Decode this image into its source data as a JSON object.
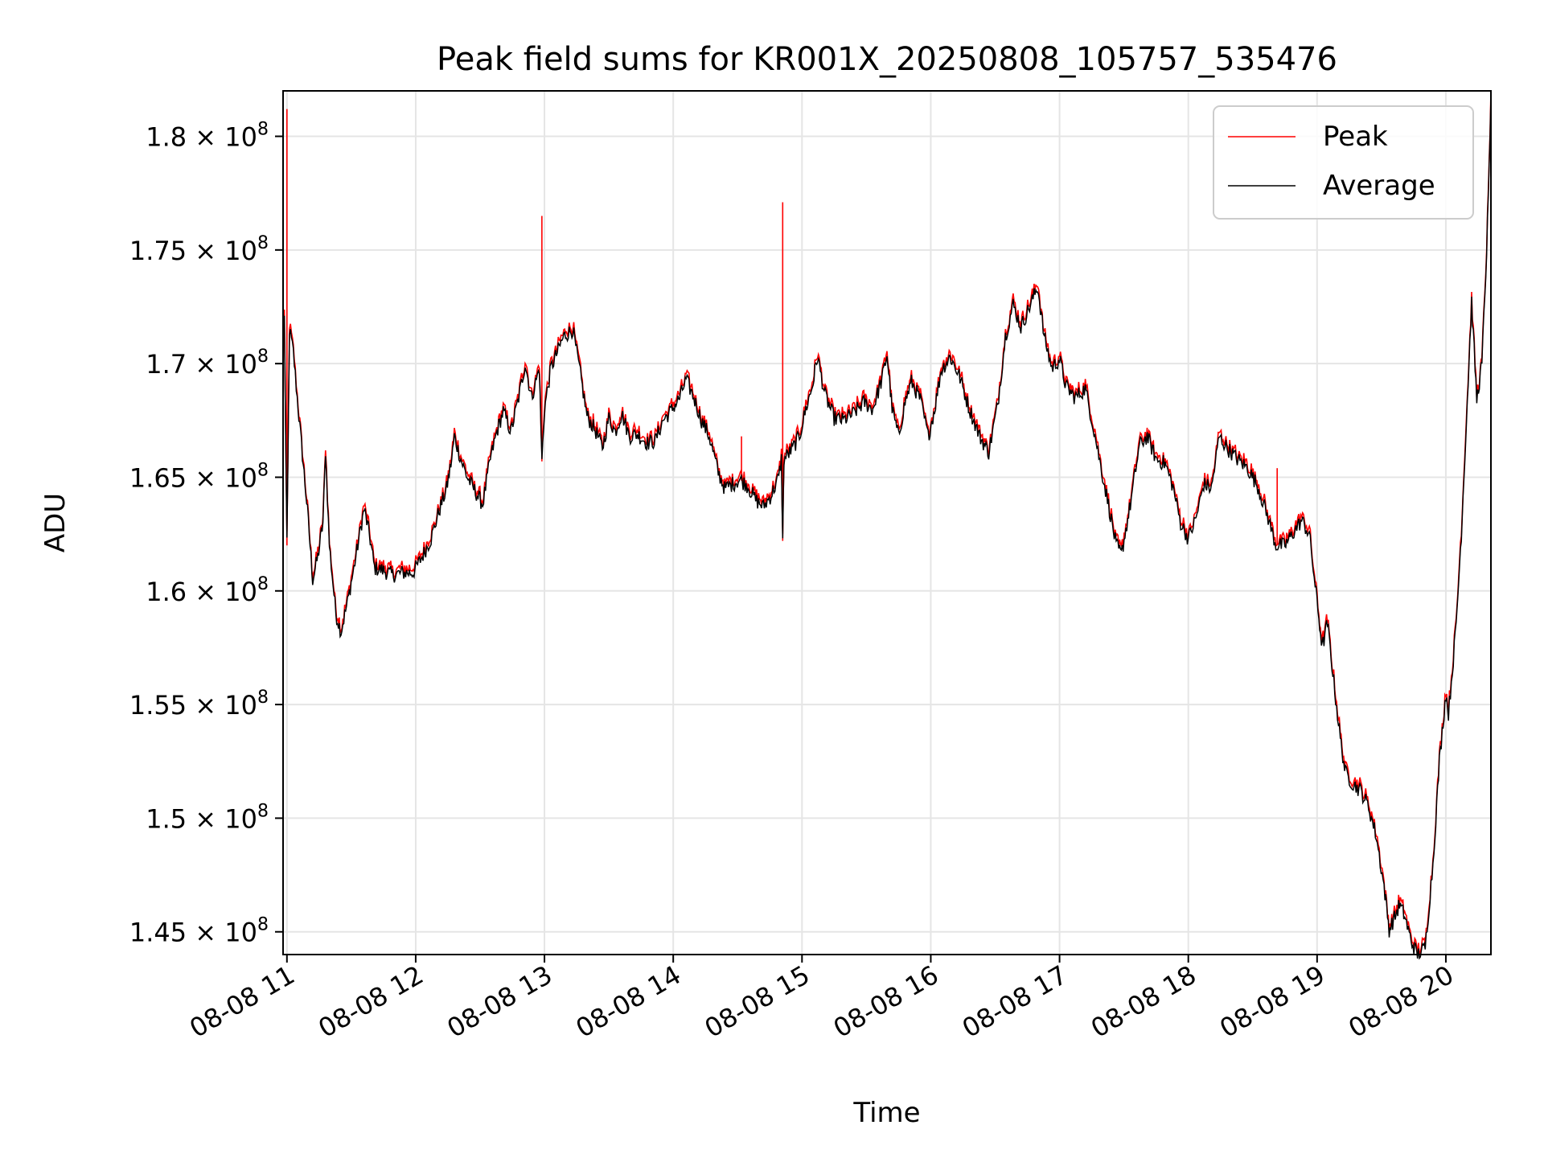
{
  "chart_data": {
    "type": "line",
    "title": "Peak field sums for KR001X_20250808_105757_535476",
    "xlabel": "Time",
    "ylabel": "ADU",
    "x_unit": "hours of day on 08-08",
    "xlim": [
      10.97,
      20.35
    ],
    "ylim": [
      144000000,
      182000000
    ],
    "grid": true,
    "legend_position": "top-right",
    "x_ticks": [
      {
        "value": 11,
        "label": "08-08 11"
      },
      {
        "value": 12,
        "label": "08-08 12"
      },
      {
        "value": 13,
        "label": "08-08 13"
      },
      {
        "value": 14,
        "label": "08-08 14"
      },
      {
        "value": 15,
        "label": "08-08 15"
      },
      {
        "value": 16,
        "label": "08-08 16"
      },
      {
        "value": 17,
        "label": "08-08 17"
      },
      {
        "value": 18,
        "label": "08-08 18"
      },
      {
        "value": 19,
        "label": "08-08 19"
      },
      {
        "value": 20,
        "label": "08-08 20"
      }
    ],
    "y_ticks": [
      {
        "value": 145000000,
        "mantissa": "1.45",
        "base": "10",
        "exp": "8"
      },
      {
        "value": 150000000,
        "mantissa": "1.5",
        "base": "10",
        "exp": "8"
      },
      {
        "value": 155000000,
        "mantissa": "1.55",
        "base": "10",
        "exp": "8"
      },
      {
        "value": 160000000,
        "mantissa": "1.6",
        "base": "10",
        "exp": "8"
      },
      {
        "value": 165000000,
        "mantissa": "1.65",
        "base": "10",
        "exp": "8"
      },
      {
        "value": 170000000,
        "mantissa": "1.7",
        "base": "10",
        "exp": "8"
      },
      {
        "value": 175000000,
        "mantissa": "1.75",
        "base": "10",
        "exp": "8"
      },
      {
        "value": 180000000,
        "mantissa": "1.8",
        "base": "10",
        "exp": "8"
      }
    ],
    "average_points": [
      [
        10.98,
        172000000
      ],
      [
        11.0,
        162000000
      ],
      [
        11.02,
        171500000
      ],
      [
        11.05,
        170500000
      ],
      [
        11.08,
        168500000
      ],
      [
        11.12,
        166000000
      ],
      [
        11.16,
        163500000
      ],
      [
        11.2,
        160500000
      ],
      [
        11.24,
        161500000
      ],
      [
        11.28,
        163000000
      ],
      [
        11.3,
        166200000
      ],
      [
        11.33,
        162000000
      ],
      [
        11.38,
        159000000
      ],
      [
        11.42,
        158200000
      ],
      [
        11.47,
        159500000
      ],
      [
        11.52,
        161000000
      ],
      [
        11.55,
        162000000
      ],
      [
        11.58,
        163000000
      ],
      [
        11.6,
        163600000
      ],
      [
        11.64,
        162500000
      ],
      [
        11.68,
        161000000
      ],
      [
        11.75,
        160900000
      ],
      [
        11.82,
        160700000
      ],
      [
        11.9,
        160800000
      ],
      [
        11.98,
        160800000
      ],
      [
        12.05,
        161500000
      ],
      [
        12.12,
        162300000
      ],
      [
        12.18,
        163500000
      ],
      [
        12.24,
        164500000
      ],
      [
        12.28,
        165800000
      ],
      [
        12.3,
        166800000
      ],
      [
        12.35,
        165800000
      ],
      [
        12.4,
        165000000
      ],
      [
        12.45,
        164500000
      ],
      [
        12.52,
        163800000
      ],
      [
        12.58,
        165800000
      ],
      [
        12.63,
        167000000
      ],
      [
        12.68,
        167900000
      ],
      [
        12.74,
        167000000
      ],
      [
        12.8,
        168500000
      ],
      [
        12.85,
        170000000
      ],
      [
        12.9,
        168500000
      ],
      [
        12.96,
        169800000
      ],
      [
        12.98,
        165700000
      ],
      [
        13.0,
        168000000
      ],
      [
        13.05,
        169800000
      ],
      [
        13.1,
        170500000
      ],
      [
        13.15,
        171200000
      ],
      [
        13.22,
        171500000
      ],
      [
        13.28,
        169500000
      ],
      [
        13.33,
        167700000
      ],
      [
        13.4,
        167000000
      ],
      [
        13.45,
        166300000
      ],
      [
        13.5,
        167600000
      ],
      [
        13.55,
        167000000
      ],
      [
        13.6,
        167800000
      ],
      [
        13.66,
        166800000
      ],
      [
        13.72,
        166900000
      ],
      [
        13.8,
        166500000
      ],
      [
        13.86,
        166600000
      ],
      [
        13.92,
        167500000
      ],
      [
        13.98,
        167900000
      ],
      [
        14.05,
        168500000
      ],
      [
        14.1,
        169300000
      ],
      [
        14.16,
        168500000
      ],
      [
        14.22,
        167500000
      ],
      [
        14.28,
        166800000
      ],
      [
        14.35,
        165200000
      ],
      [
        14.4,
        164500000
      ],
      [
        14.46,
        164700000
      ],
      [
        14.52,
        164900000
      ],
      [
        14.58,
        164600000
      ],
      [
        14.64,
        164000000
      ],
      [
        14.7,
        163700000
      ],
      [
        14.76,
        164200000
      ],
      [
        14.82,
        165000000
      ],
      [
        14.84,
        165800000
      ],
      [
        14.85,
        162200000
      ],
      [
        14.86,
        165800000
      ],
      [
        14.92,
        166200000
      ],
      [
        14.98,
        166800000
      ],
      [
        15.03,
        168000000
      ],
      [
        15.08,
        169000000
      ],
      [
        15.12,
        170300000
      ],
      [
        15.18,
        168600000
      ],
      [
        15.25,
        167600000
      ],
      [
        15.32,
        167500000
      ],
      [
        15.4,
        167800000
      ],
      [
        15.48,
        168300000
      ],
      [
        15.55,
        168000000
      ],
      [
        15.62,
        169300000
      ],
      [
        15.66,
        170400000
      ],
      [
        15.7,
        168000000
      ],
      [
        15.75,
        166800000
      ],
      [
        15.8,
        168300000
      ],
      [
        15.85,
        169200000
      ],
      [
        15.92,
        168400000
      ],
      [
        15.98,
        166800000
      ],
      [
        16.03,
        168000000
      ],
      [
        16.08,
        169700000
      ],
      [
        16.15,
        170300000
      ],
      [
        16.22,
        169500000
      ],
      [
        16.3,
        168000000
      ],
      [
        16.38,
        166800000
      ],
      [
        16.45,
        166100000
      ],
      [
        16.52,
        168200000
      ],
      [
        16.58,
        171200000
      ],
      [
        16.64,
        172600000
      ],
      [
        16.7,
        171600000
      ],
      [
        16.76,
        172400000
      ],
      [
        16.83,
        173400000
      ],
      [
        16.88,
        171200000
      ],
      [
        16.94,
        169800000
      ],
      [
        17.0,
        170200000
      ],
      [
        17.05,
        169000000
      ],
      [
        17.12,
        168500000
      ],
      [
        17.2,
        168900000
      ],
      [
        17.26,
        167300000
      ],
      [
        17.32,
        165500000
      ],
      [
        17.38,
        163800000
      ],
      [
        17.44,
        162000000
      ],
      [
        17.48,
        161600000
      ],
      [
        17.55,
        163800000
      ],
      [
        17.62,
        166400000
      ],
      [
        17.68,
        166800000
      ],
      [
        17.75,
        165800000
      ],
      [
        17.82,
        165600000
      ],
      [
        17.88,
        164600000
      ],
      [
        17.94,
        163000000
      ],
      [
        18.0,
        162300000
      ],
      [
        18.06,
        163200000
      ],
      [
        18.12,
        164700000
      ],
      [
        18.18,
        164500000
      ],
      [
        18.24,
        166800000
      ],
      [
        18.3,
        166300000
      ],
      [
        18.38,
        165800000
      ],
      [
        18.46,
        165400000
      ],
      [
        18.54,
        164600000
      ],
      [
        18.62,
        163200000
      ],
      [
        18.68,
        162000000
      ],
      [
        18.75,
        162000000
      ],
      [
        18.82,
        162600000
      ],
      [
        18.88,
        163100000
      ],
      [
        18.94,
        162500000
      ],
      [
        19.0,
        159500000
      ],
      [
        19.04,
        157500000
      ],
      [
        19.08,
        158600000
      ],
      [
        19.13,
        156000000
      ],
      [
        19.18,
        153500000
      ],
      [
        19.22,
        152000000
      ],
      [
        19.28,
        151500000
      ],
      [
        19.34,
        151200000
      ],
      [
        19.4,
        150500000
      ],
      [
        19.46,
        149200000
      ],
      [
        19.52,
        147000000
      ],
      [
        19.56,
        145100000
      ],
      [
        19.6,
        145600000
      ],
      [
        19.64,
        146200000
      ],
      [
        19.68,
        145700000
      ],
      [
        19.73,
        144600000
      ],
      [
        19.78,
        144000000
      ],
      [
        19.84,
        144300000
      ],
      [
        19.9,
        148000000
      ],
      [
        19.95,
        152500000
      ],
      [
        20.0,
        155500000
      ],
      [
        20.02,
        154600000
      ],
      [
        20.05,
        156500000
      ],
      [
        20.08,
        158500000
      ],
      [
        20.12,
        162500000
      ],
      [
        20.16,
        167500000
      ],
      [
        20.2,
        172700000
      ],
      [
        20.24,
        168400000
      ],
      [
        20.28,
        170000000
      ],
      [
        20.31,
        174000000
      ],
      [
        20.33,
        177200000
      ],
      [
        20.35,
        181800000
      ]
    ],
    "peak_spikes": [
      {
        "x": 11.0,
        "y": 181200000
      },
      {
        "x": 12.98,
        "y": 176500000
      },
      {
        "x": 14.85,
        "y": 177100000
      },
      {
        "x": 14.53,
        "y": 166800000
      },
      {
        "x": 18.69,
        "y": 165400000
      }
    ],
    "series": [
      {
        "name": "Peak",
        "color": "#ff0000"
      },
      {
        "name": "Average",
        "color": "#000000"
      }
    ]
  }
}
